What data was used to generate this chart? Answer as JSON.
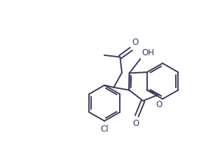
{
  "background": "#ffffff",
  "line_color": "#3a3a5a",
  "line_width": 1.4,
  "font_size": 8.5,
  "label_color": "#3a3a5a",
  "figsize": [
    3.14,
    2.1
  ],
  "dpi": 100,
  "xlim": [
    0,
    10
  ],
  "ylim": [
    0,
    6.7
  ]
}
